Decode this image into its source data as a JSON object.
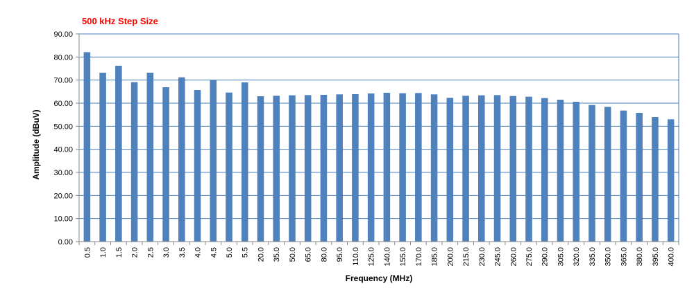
{
  "chart_data": {
    "type": "bar",
    "title": "500 kHz Step Size",
    "xlabel": "Frequency (MHz)",
    "ylabel": "Amplitude (dBuV)",
    "ylim": [
      0,
      90
    ],
    "yticks": [
      "0.00",
      "10.00",
      "20.00",
      "30.00",
      "40.00",
      "50.00",
      "60.00",
      "70.00",
      "80.00",
      "90.00"
    ],
    "grid": true,
    "legend": "none",
    "categories": [
      "0.5",
      "1.0",
      "1.5",
      "2.0",
      "2.5",
      "3.0",
      "3.5",
      "4.0",
      "4.5",
      "5.0",
      "5.5",
      "20.0",
      "35.0",
      "50.0",
      "65.0",
      "80.0",
      "95.0",
      "110.0",
      "125.0",
      "140.0",
      "155.0",
      "170.0",
      "185.0",
      "200.0",
      "215.0",
      "230.0",
      "245.0",
      "260.0",
      "275.0",
      "290.0",
      "305.0",
      "320.0",
      "335.0",
      "350.0",
      "365.0",
      "380.0",
      "395.0",
      "400.0"
    ],
    "values": [
      82.1,
      73.2,
      76.2,
      69.1,
      73.2,
      66.9,
      71.2,
      65.7,
      70.0,
      64.6,
      69.0,
      63.0,
      63.2,
      63.4,
      63.5,
      63.6,
      63.8,
      63.9,
      64.2,
      64.5,
      64.3,
      64.4,
      63.8,
      62.3,
      63.2,
      63.4,
      63.5,
      63.1,
      62.8,
      62.2,
      61.5,
      60.6,
      59.2,
      58.4,
      56.8,
      55.8,
      54.0,
      53.0
    ],
    "colors": {
      "title": "#ff0000",
      "bar": "#4f81bd",
      "grid": "#4a7ebb",
      "axis": "#868686"
    }
  }
}
